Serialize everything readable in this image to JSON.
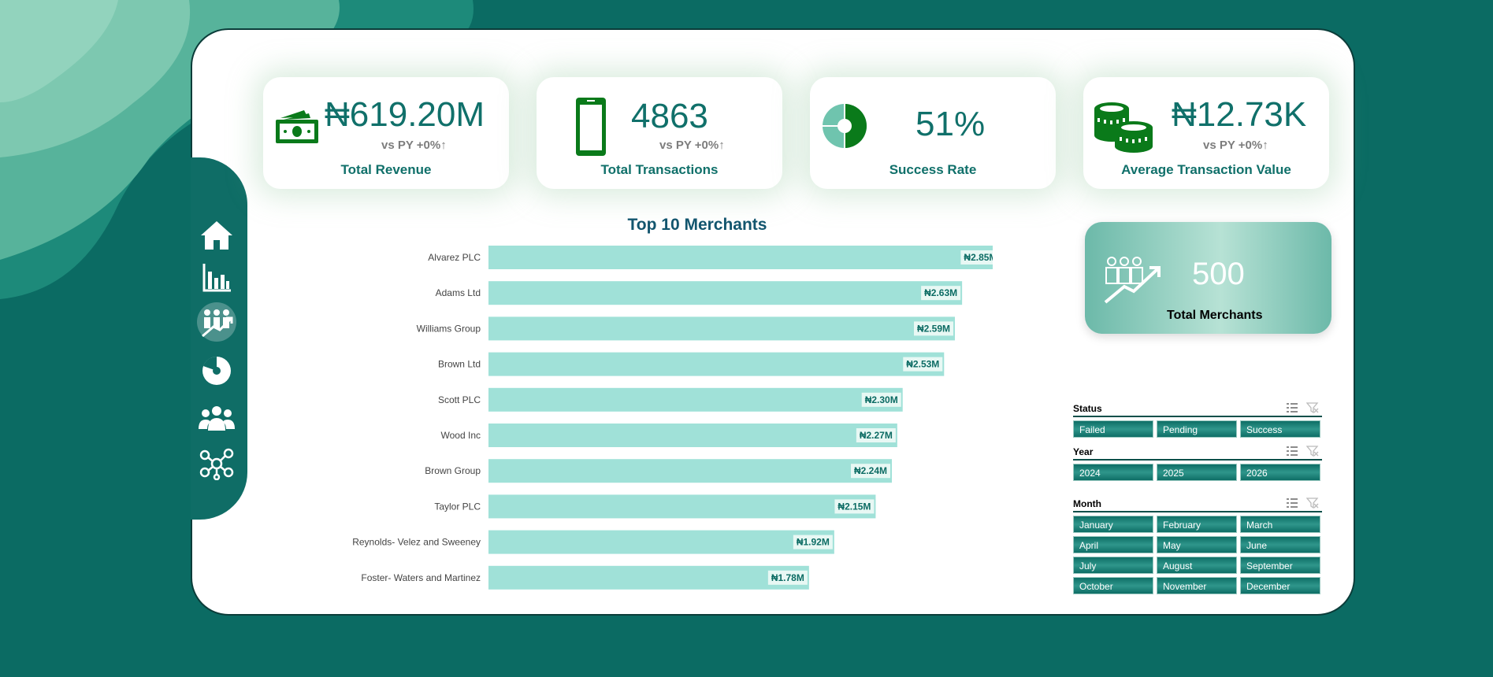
{
  "colors": {
    "background": "#0b6b63",
    "accent": "#10706a",
    "bar": "#a0e1d8",
    "bar_label": "#0b6b63",
    "icon_green": "#0a7a1a"
  },
  "kpis": [
    {
      "value": "₦619.20M",
      "comparison": "vs PY  +0%↑",
      "label": "Total Revenue",
      "icon": "cash-icon"
    },
    {
      "value": "4863",
      "comparison": "vs PY  +0%↑",
      "label": "Total Transactions",
      "icon": "phone-icon"
    },
    {
      "value": "51%",
      "label": "Success Rate",
      "icon": "donut-icon"
    },
    {
      "value": "₦12.73K",
      "comparison": "vs PY  +0%↑",
      "label": "Average Transaction Value",
      "icon": "coins-icon"
    }
  ],
  "merchants_card": {
    "value": "500",
    "label": "Total Merchants",
    "icon": "growth-people-icon"
  },
  "sidebar": {
    "items": [
      {
        "icon": "home-icon"
      },
      {
        "icon": "bar-chart-icon"
      },
      {
        "icon": "growth-people-icon",
        "active": true
      },
      {
        "icon": "pie-chart-icon"
      },
      {
        "icon": "users-icon"
      },
      {
        "icon": "network-icon"
      }
    ]
  },
  "chart_data": {
    "type": "bar",
    "orientation": "horizontal",
    "title": "Top 10 Merchants",
    "categories": [
      "Alvarez PLC",
      "Adams Ltd",
      "Williams Group",
      "Brown Ltd",
      "Scott PLC",
      "Wood Inc",
      "Brown Group",
      "Taylor PLC",
      "Reynolds- Velez and Sweeney",
      "Foster- Waters and Martinez"
    ],
    "values": [
      2.85,
      2.63,
      2.59,
      2.53,
      2.3,
      2.27,
      2.24,
      2.15,
      1.92,
      1.78
    ],
    "data_labels": [
      "₦2.85M",
      "₦2.63M",
      "₦2.59M",
      "₦2.53M",
      "₦2.30M",
      "₦2.27M",
      "₦2.24M",
      "₦2.15M",
      "₦1.92M",
      "₦1.78M"
    ],
    "unit": "₦M",
    "xlim": [
      0,
      3.5
    ],
    "grid": false,
    "legend": "none"
  },
  "slicers": [
    {
      "title": "Status",
      "options": [
        "Failed",
        "Pending",
        "Success"
      ]
    },
    {
      "title": "Year",
      "options": [
        "2024",
        "2025",
        "2026"
      ]
    },
    {
      "title": "Month",
      "options": [
        "January",
        "February",
        "March",
        "April",
        "May",
        "June",
        "July",
        "August",
        "September",
        "October",
        "November",
        "December"
      ]
    }
  ]
}
